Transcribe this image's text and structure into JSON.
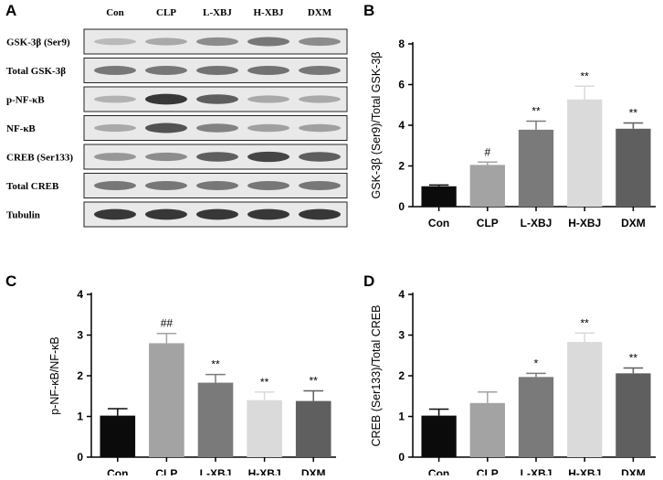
{
  "panels": {
    "a": "A",
    "b": "B",
    "c": "C",
    "d": "D"
  },
  "blot": {
    "lanes": [
      "Con",
      "CLP",
      "L-XBJ",
      "H-XBJ",
      "DXM"
    ],
    "rows": [
      {
        "label": "GSK-3β (Ser9)",
        "intensity": [
          0.35,
          0.45,
          0.6,
          0.7,
          0.6
        ]
      },
      {
        "label": "Total GSK-3β",
        "intensity": [
          0.7,
          0.7,
          0.72,
          0.72,
          0.7
        ]
      },
      {
        "label": "p-NF-κB",
        "intensity": [
          0.4,
          0.95,
          0.8,
          0.45,
          0.45
        ]
      },
      {
        "label": "NF-κB",
        "intensity": [
          0.45,
          0.85,
          0.65,
          0.5,
          0.5
        ]
      },
      {
        "label": "CREB (Ser133)",
        "intensity": [
          0.55,
          0.6,
          0.8,
          0.9,
          0.8
        ]
      },
      {
        "label": "Total CREB",
        "intensity": [
          0.7,
          0.7,
          0.7,
          0.7,
          0.7
        ]
      },
      {
        "label": "Tubulin",
        "intensity": [
          0.95,
          0.95,
          0.95,
          0.95,
          0.95
        ]
      }
    ]
  },
  "chart_data": [
    {
      "panel": "B",
      "type": "bar",
      "categories": [
        "Con",
        "CLP",
        "L-XBJ",
        "H-XBJ",
        "DXM"
      ],
      "values": [
        1.0,
        2.05,
        3.78,
        5.27,
        3.83
      ],
      "errors": [
        0.06,
        0.14,
        0.42,
        0.65,
        0.28
      ],
      "annotations": [
        "",
        "#",
        "**",
        "**",
        "**"
      ],
      "ylabel": "GSK-3β (Ser9)/Total GSK-3β",
      "ylim": [
        0,
        8
      ],
      "yticks": [
        "0",
        "2",
        "4",
        "6",
        "8"
      ],
      "colors": [
        "#0b0b0b",
        "#a3a3a3",
        "#7a7a7a",
        "#dadada",
        "#5f5f5f"
      ]
    },
    {
      "panel": "C",
      "type": "bar",
      "categories": [
        "Con",
        "CLP",
        "L-XBJ",
        "H-XBJ",
        "DXM"
      ],
      "values": [
        1.02,
        2.8,
        1.83,
        1.4,
        1.38
      ],
      "errors": [
        0.17,
        0.24,
        0.2,
        0.2,
        0.25
      ],
      "annotations": [
        "",
        "##",
        "**",
        "**",
        "**"
      ],
      "ylabel": "p-NF-κB/NF-κB",
      "ylim": [
        0,
        4
      ],
      "yticks": [
        "0",
        "1",
        "2",
        "3",
        "4"
      ],
      "colors": [
        "#0b0b0b",
        "#a3a3a3",
        "#7a7a7a",
        "#dadada",
        "#5f5f5f"
      ]
    },
    {
      "panel": "D",
      "type": "bar",
      "categories": [
        "Con",
        "CLP",
        "L-XBJ",
        "H-XBJ",
        "DXM"
      ],
      "values": [
        1.02,
        1.33,
        1.97,
        2.83,
        2.06
      ],
      "errors": [
        0.16,
        0.27,
        0.09,
        0.22,
        0.13
      ],
      "annotations": [
        "",
        "",
        "*",
        "**",
        "**"
      ],
      "ylabel": "CREB (Ser133)/Total CREB",
      "ylim": [
        0,
        4
      ],
      "yticks": [
        "0",
        "1",
        "2",
        "3",
        "4"
      ],
      "colors": [
        "#0b0b0b",
        "#a3a3a3",
        "#7a7a7a",
        "#dadada",
        "#5f5f5f"
      ]
    }
  ]
}
